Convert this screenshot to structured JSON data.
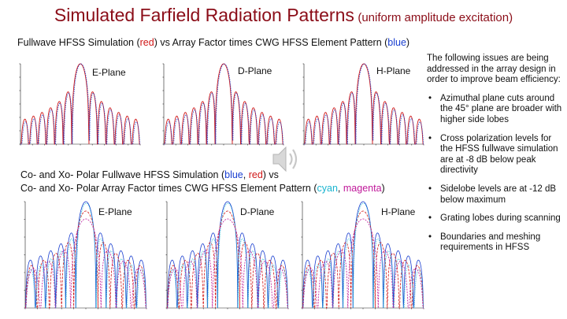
{
  "title": {
    "main": "Simulated Farfield Radiation Patterns",
    "sub": "(uniform amplitude excitation)"
  },
  "top_caption": {
    "a": "Fullwave HFSS Simulation (",
    "red": "red",
    "b": ") vs Array Factor times CWG HFSS Element Pattern (",
    "blue": "blue",
    "c": ")"
  },
  "mid_caption": {
    "line1": {
      "a": "Co- and Xo- Polar Fullwave HFSS Simulation (",
      "blue": "blue",
      "sep": ", ",
      "red": "red",
      "b": ") vs"
    },
    "line2": {
      "a": "Co- and Xo- Polar Array Factor times CWG HFSS Element Pattern (",
      "cyan": "cyan",
      "sep": ", ",
      "magenta": "magenta",
      "b": ")"
    }
  },
  "planes": {
    "e": "E-Plane",
    "d": "D-Plane",
    "h": "H-Plane"
  },
  "notes": {
    "intro": "The following issues are being addressed in the array design in order to improve beam efficiency:",
    "bullets": [
      "Azimuthal plane cuts around the 45° plane are broader with higher side lobes",
      "Cross polarization levels for the HFSS fullwave simulation are at -8 dB below peak directivity",
      "Sidelobe levels are at -12 dB below maximum",
      "Grating lobes during scanning",
      "Boundaries and meshing requirements in HFSS"
    ]
  },
  "colors": {
    "title": "#8b0d18",
    "red": "#d01818",
    "blue": "#1a3fd0",
    "cyan": "#1bb5d0",
    "magenta": "#c0189a"
  },
  "icons": {
    "speaker": "speaker-icon"
  }
}
